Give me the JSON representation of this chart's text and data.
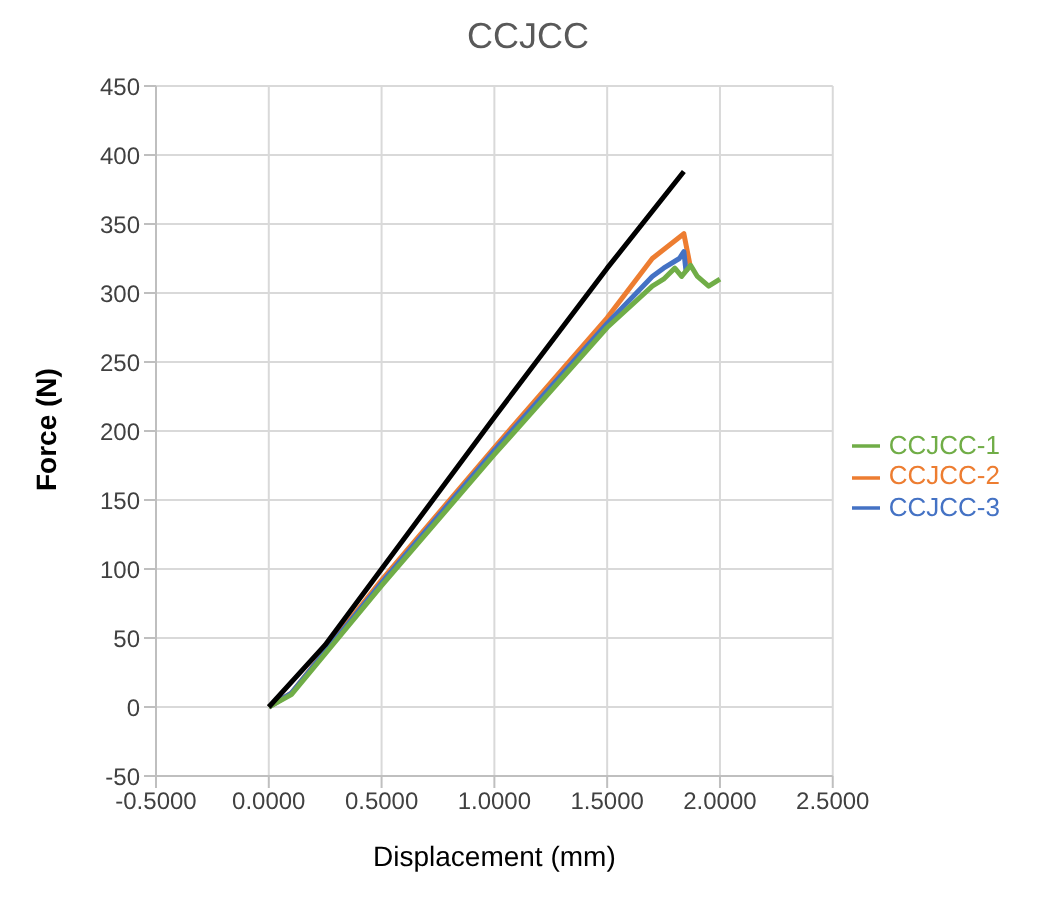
{
  "chart_data": {
    "type": "line",
    "title": "CCJCC",
    "xlabel": "Displacement (mm)",
    "ylabel": "Force (N)",
    "xlim": [
      -0.5,
      2.5
    ],
    "ylim": [
      -50,
      450
    ],
    "xticks": [
      {
        "value": -0.5,
        "label": "-0.5000"
      },
      {
        "value": 0,
        "label": "0.0000"
      },
      {
        "value": 0.5,
        "label": "0.5000"
      },
      {
        "value": 1,
        "label": "1.0000"
      },
      {
        "value": 1.5,
        "label": "1.5000"
      },
      {
        "value": 2,
        "label": "2.0000"
      },
      {
        "value": 2.5,
        "label": "2.5000"
      }
    ],
    "yticks": [
      -50,
      0,
      50,
      100,
      150,
      200,
      250,
      300,
      350,
      400,
      450
    ],
    "grid": true,
    "legend": "right",
    "marker": "none",
    "line_style": "solid",
    "series": [
      {
        "name": "CCJCC-2",
        "color": "#ed7d31",
        "x": [
          0,
          0.1,
          0.5,
          1.0,
          1.5,
          1.7,
          1.84,
          1.87
        ],
        "values": [
          0,
          10,
          92,
          188,
          282,
          325,
          343,
          318
        ]
      },
      {
        "name": "CCJCC-3",
        "color": "#4472c4",
        "x": [
          0,
          0.1,
          0.5,
          1.0,
          1.5,
          1.7,
          1.75,
          1.82,
          1.84,
          1.85
        ],
        "values": [
          0,
          10,
          90,
          186,
          278,
          312,
          318,
          325,
          330,
          315
        ]
      },
      {
        "name": "CCJCC-1",
        "color": "#70ad47",
        "x": [
          0,
          0.1,
          0.5,
          1.0,
          1.5,
          1.7,
          1.75,
          1.8,
          1.83,
          1.87,
          1.9,
          1.95,
          2.0
        ],
        "values": [
          0,
          9,
          88,
          183,
          275,
          305,
          310,
          318,
          312,
          320,
          312,
          305,
          310
        ]
      },
      {
        "color": "#000000",
        "x": [
          0,
          0.25,
          0.5,
          1.0,
          1.5,
          1.84
        ],
        "values": [
          0,
          45,
          100,
          210,
          318,
          388
        ]
      }
    ]
  }
}
